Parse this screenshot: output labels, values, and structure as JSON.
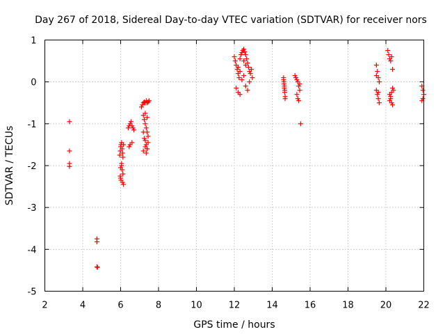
{
  "chart_data": {
    "type": "scatter",
    "title": "Day 267 of 2018, Sidereal Day-to-day VTEC variation (SDTVAR) for receiver nors",
    "xlabel": "GPS time / hours",
    "ylabel": "SDTVAR / TECUs",
    "xlim": [
      2,
      22
    ],
    "ylim": [
      -5,
      1
    ],
    "xticks": [
      2,
      4,
      6,
      8,
      10,
      12,
      14,
      16,
      18,
      20,
      22
    ],
    "yticks": [
      1,
      0,
      -1,
      -2,
      -3,
      -4,
      -5
    ],
    "grid": true,
    "marker": "+",
    "color": "#ff0000",
    "series": [
      {
        "name": "SDTVAR",
        "x": [
          3.3,
          3.3,
          3.3,
          3.3,
          4.75,
          4.75,
          4.75,
          4.78,
          5.95,
          5.98,
          6.0,
          6.02,
          6.05,
          6.08,
          6.1,
          6.12,
          6.15,
          6.05,
          6.0,
          5.98,
          6.02,
          6.1,
          6.15,
          6.12,
          6.08,
          6.05,
          6.0,
          6.4,
          6.45,
          6.5,
          6.55,
          6.6,
          6.65,
          6.7,
          6.6,
          6.5,
          6.45,
          7.1,
          7.15,
          7.2,
          7.25,
          7.3,
          7.35,
          7.4,
          7.45,
          7.5,
          7.2,
          7.25,
          7.3,
          7.35,
          7.4,
          7.45,
          7.3,
          7.35,
          7.4,
          7.2,
          7.25,
          7.3,
          7.35,
          7.4,
          7.45,
          7.2,
          7.3,
          7.4,
          12.0,
          12.05,
          12.1,
          12.15,
          12.2,
          12.25,
          12.3,
          12.35,
          12.4,
          12.45,
          12.5,
          12.55,
          12.6,
          12.65,
          12.7,
          12.75,
          12.8,
          12.85,
          12.9,
          12.95,
          12.1,
          12.2,
          12.3,
          12.4,
          12.5,
          12.6,
          12.7,
          12.8,
          12.2,
          12.3,
          12.5,
          12.6,
          14.6,
          14.62,
          14.64,
          14.66,
          14.68,
          14.6,
          14.62,
          14.64,
          14.66,
          14.68,
          15.2,
          15.25,
          15.3,
          15.35,
          15.4,
          15.45,
          15.3,
          15.35,
          15.4,
          15.45,
          15.5,
          19.5,
          19.55,
          19.6,
          19.65,
          19.5,
          19.55,
          19.6,
          19.65,
          19.5,
          19.6,
          20.1,
          20.15,
          20.2,
          20.25,
          20.3,
          20.35,
          20.4,
          20.2,
          20.25,
          20.3,
          20.35,
          20.2,
          20.25,
          20.3,
          20.35,
          21.9,
          21.95,
          22.0,
          21.95,
          21.9
        ],
        "y": [
          -0.95,
          -1.65,
          -1.95,
          -2.02,
          -3.75,
          -3.82,
          -4.42,
          -4.43,
          -1.75,
          -1.65,
          -1.55,
          -1.5,
          -1.45,
          -1.6,
          -1.7,
          -1.8,
          -1.5,
          -1.95,
          -2.05,
          -2.25,
          -2.35,
          -2.4,
          -2.45,
          -2.2,
          -2.1,
          -2.0,
          -2.3,
          -1.1,
          -1.05,
          -1.0,
          -0.95,
          -1.05,
          -1.1,
          -1.15,
          -1.45,
          -1.5,
          -1.55,
          -0.6,
          -0.55,
          -0.5,
          -0.48,
          -0.5,
          -0.45,
          -0.5,
          -0.48,
          -0.45,
          -0.8,
          -0.9,
          -1.0,
          -1.1,
          -1.2,
          -1.3,
          -1.4,
          -1.5,
          -1.6,
          -1.2,
          -1.35,
          -1.55,
          -1.7,
          -1.6,
          -1.45,
          -1.65,
          -0.75,
          -0.85,
          0.6,
          0.5,
          0.4,
          0.3,
          0.2,
          0.1,
          0.55,
          0.65,
          0.7,
          0.75,
          0.78,
          0.72,
          0.65,
          0.55,
          0.45,
          0.35,
          0.25,
          0.2,
          0.3,
          0.1,
          -0.15,
          -0.25,
          -0.3,
          0.05,
          0.15,
          -0.1,
          -0.2,
          0.0,
          0.35,
          0.25,
          0.5,
          0.4,
          0.1,
          0.0,
          -0.1,
          -0.2,
          -0.35,
          0.05,
          -0.05,
          -0.15,
          -0.25,
          -0.4,
          0.15,
          0.1,
          0.05,
          0.0,
          -0.1,
          -0.2,
          -0.3,
          -0.4,
          -0.45,
          -0.05,
          -1.0,
          0.4,
          0.25,
          0.1,
          0.0,
          -0.2,
          -0.3,
          -0.4,
          -0.5,
          0.15,
          -0.25,
          0.75,
          0.65,
          0.55,
          0.5,
          0.6,
          0.3,
          -0.2,
          -0.3,
          -0.4,
          -0.5,
          -0.55,
          -0.45,
          -0.35,
          -0.25,
          -0.15,
          -0.1,
          -0.2,
          -0.3,
          -0.4,
          -0.45
        ]
      }
    ]
  }
}
